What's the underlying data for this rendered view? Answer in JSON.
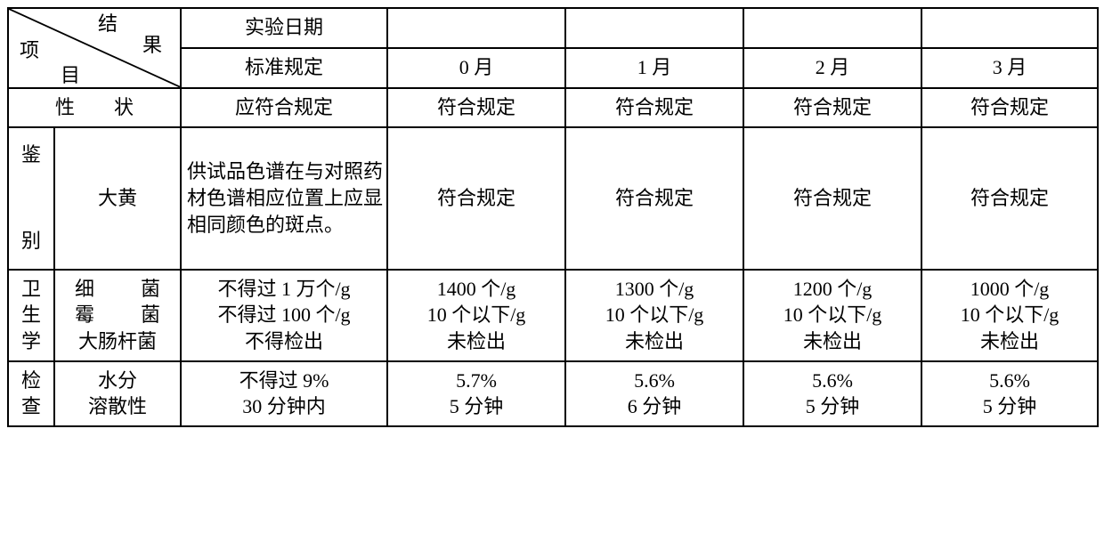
{
  "diag": {
    "top_label": "结",
    "top_label2": "果",
    "left_label": "项",
    "left_label2": "目"
  },
  "hdr": {
    "r1c1": "实验日期",
    "r2c1": "标准规定",
    "r2c2": "0 月",
    "r2c3": "1 月",
    "r2c4": "2 月",
    "r2c5": "3 月"
  },
  "row_prop": {
    "label": "性　　状",
    "std": "应符合规定",
    "m0": "符合规定",
    "m1": "符合规定",
    "m2": "符合规定",
    "m3": "符合规定"
  },
  "row_id": {
    "group": "鉴\n\n别",
    "item": "大黄",
    "std": "供试品色谱在与对照药材色谱相应位置上应显相同颜色的斑点。",
    "m0": "符合规定",
    "m1": "符合规定",
    "m2": "符合规定",
    "m3": "符合规定"
  },
  "row_hyg": {
    "group": "卫\n生\n学",
    "item1": "细　　菌",
    "item2": "霉　　菌",
    "item3": "大肠杆菌",
    "std1": "不得过 1 万个/g",
    "std2": "不得过 100 个/g",
    "std3": "不得检出",
    "m0_1": "1400 个/g",
    "m0_2": "10 个以下/g",
    "m0_3": "未检出",
    "m1_1": "1300 个/g",
    "m1_2": "10 个以下/g",
    "m1_3": "未检出",
    "m2_1": "1200 个/g",
    "m2_2": "10 个以下/g",
    "m2_3": "未检出",
    "m3_1": "1000 个/g",
    "m3_2": "10 个以下/g",
    "m3_3": "未检出"
  },
  "row_chk": {
    "group": "检\n查",
    "item1": "水分",
    "item2": "溶散性",
    "std1": "不得过 9%",
    "std2": "30 分钟内",
    "m0_1": "5.7%",
    "m0_2": "5 分钟",
    "m1_1": "5.6%",
    "m1_2": "6 分钟",
    "m2_1": "5.6%",
    "m2_2": "5 分钟",
    "m3_1": "5.6%",
    "m3_2": "5 分钟"
  },
  "colors": {
    "border": "#000000",
    "bg": "#ffffff",
    "text": "#000000"
  }
}
